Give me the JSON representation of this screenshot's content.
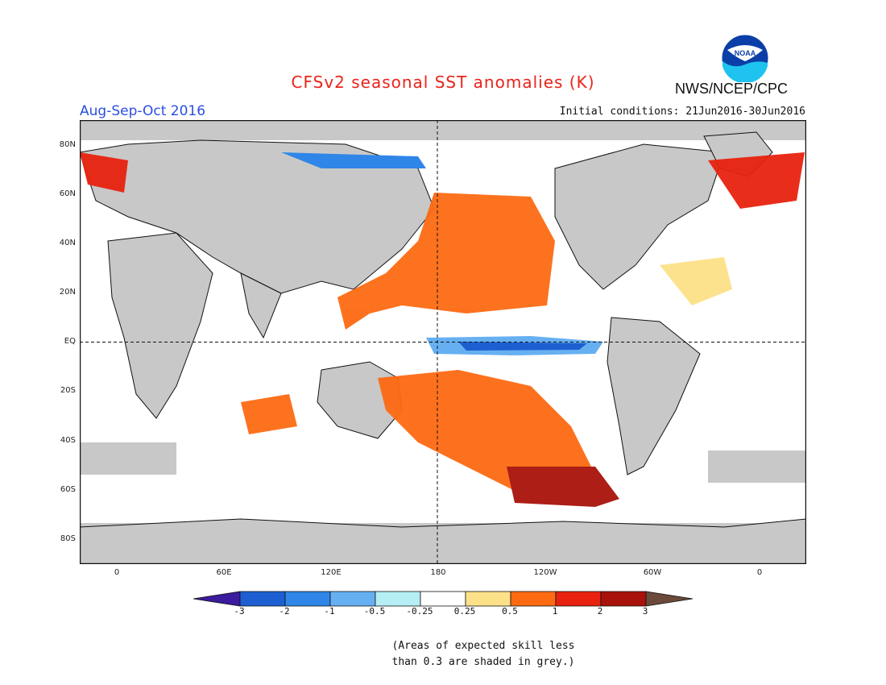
{
  "header": {
    "title": "CFSv2 seasonal SST anomalies (K)",
    "season": "Aug-Sep-Oct 2016",
    "initial_conditions": "Initial conditions: 21Jun2016-30Jun2016",
    "agency": "NWS/NCEP/CPC",
    "logo_text": "NOAA"
  },
  "map": {
    "lat_labels": [
      "80N",
      "60N",
      "40N",
      "20N",
      "EQ",
      "20S",
      "40S",
      "60S",
      "80S"
    ],
    "lon_labels": [
      "0",
      "60E",
      "120E",
      "180",
      "120W",
      "60W",
      "0"
    ]
  },
  "colorbar": {
    "ticks": [
      "-3",
      "-2",
      "-1",
      "-0.5",
      "-0.25",
      "0.25",
      "0.5",
      "1",
      "2",
      "3"
    ],
    "colors": [
      "#3b1b9e",
      "#1d5fd1",
      "#2f86e8",
      "#66b0f2",
      "#b5eef5",
      "#ffffff",
      "#fde189",
      "#fd6a12",
      "#e8220f",
      "#a8120a",
      "#6b4a3c"
    ]
  },
  "note": {
    "line1": "(Areas of expected skill less",
    "line2": "than 0.3 are shaded in grey.)"
  }
}
